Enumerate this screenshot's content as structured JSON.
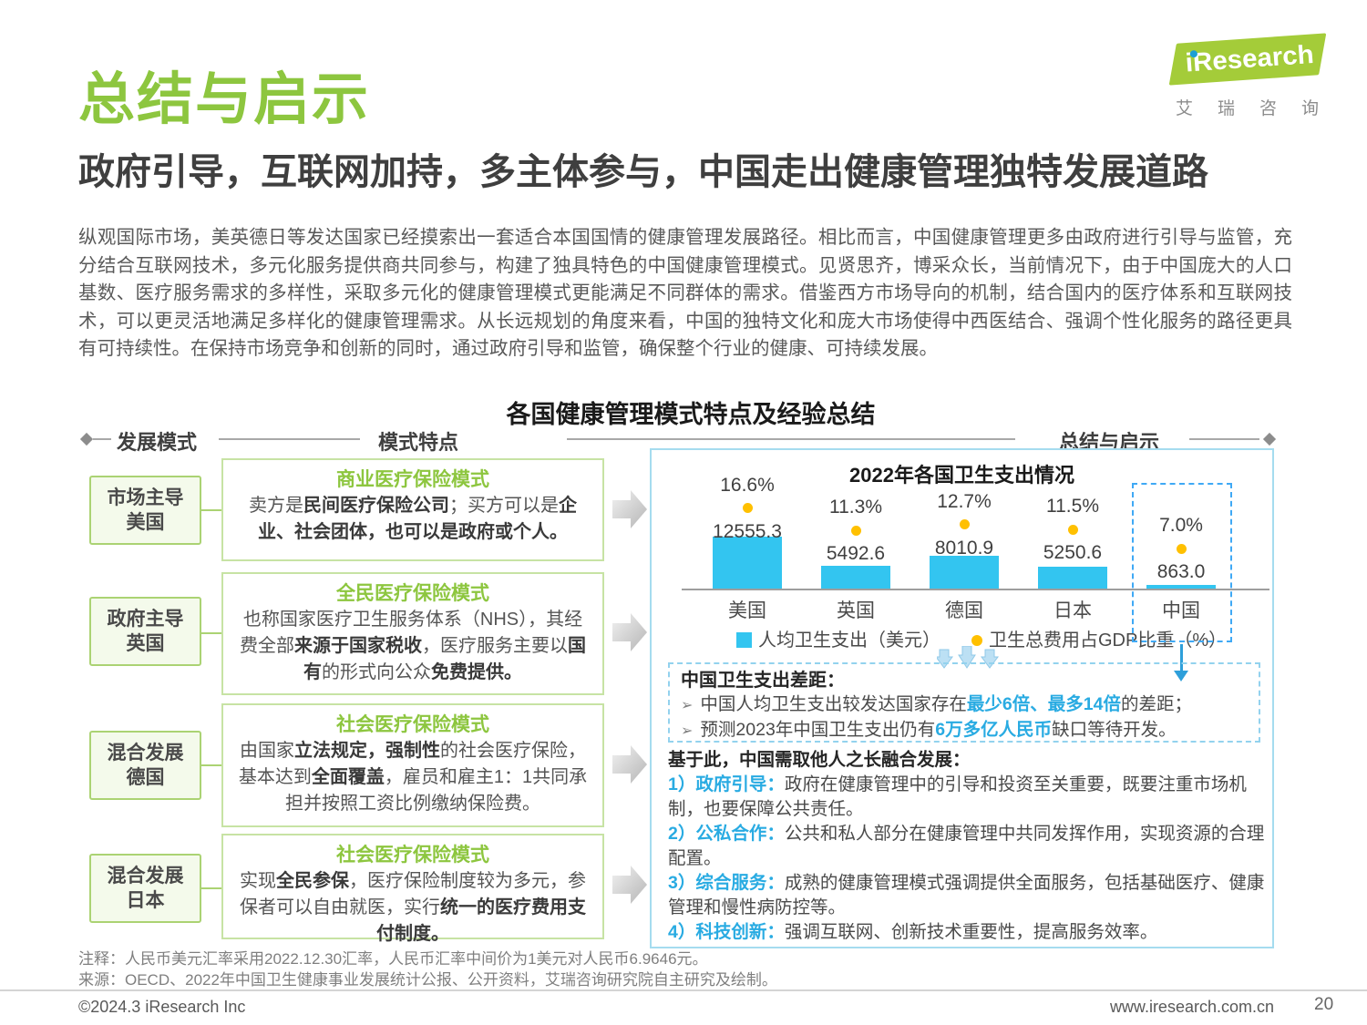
{
  "page": {
    "title": "总结与启示",
    "subtitle": "政府引导，互联网加持，多主体参与，中国走出健康管理独特发展道路",
    "paragraph": "纵观国际市场，美英德日等发达国家已经摸索出一套适合本国国情的健康管理发展路径。相比而言，中国健康管理更多由政府进行引导与监管，充分结合互联网技术，多元化服务提供商共同参与，构建了独具特色的中国健康管理模式。见贤思齐，博采众长，当前情况下，由于中国庞大的人口基数、医疗服务需求的多样性，采取多元化的健康管理模式更能满足不同群体的需求。借鉴西方市场导向的机制，结合国内的医疗体系和互联网技术，可以更灵活地满足多样化的健康管理需求。从长远规划的角度来看，中国的独特文化和庞大市场使得中西医结合、强调个性化服务的路径更具有可持续性。在保持市场竞争和创新的同时，通过政府引导和监管，确保整个行业的健康、可持续发展。",
    "notes": [
      "注释：人民币美元汇率采用2022.12.30汇率，人民币汇率中间价为1美元对人民币6.9646元。",
      "来源：OECD、2022年中国卫生健康事业发展统计公报、公开资料，艾瑞咨询研究院自主研究及绘制。"
    ],
    "footer": {
      "copyright": "©2024.3 iResearch Inc",
      "website": "www.iresearch.com.cn",
      "page_number": "20"
    }
  },
  "logo": {
    "brand": "iResearch",
    "caption": "艾瑞咨询"
  },
  "diagram": {
    "title": "各国健康管理模式特点及经验总结",
    "headers": [
      "发展模式",
      "模式特点",
      "总结与启示"
    ],
    "rows": [
      {
        "mode": "市场主导",
        "country": "美国",
        "model": "商业医疗保险模式",
        "desc": [
          {
            "t": "卖方是"
          },
          {
            "t": "民间医疗保险公司",
            "cls": "b"
          },
          {
            "t": "；买方可以是"
          },
          {
            "t": "企业、社会团体，也可以是政府或个人。",
            "cls": "b"
          }
        ]
      },
      {
        "mode": "政府主导",
        "country": "英国",
        "model": "全民医疗保险模式",
        "desc": [
          {
            "t": "也称国家医疗卫生服务体系（NHS），其经费全部"
          },
          {
            "t": "来源于国家税收",
            "cls": "b"
          },
          {
            "t": "，医疗服务主要以"
          },
          {
            "t": "国有",
            "cls": "b"
          },
          {
            "t": "的形式向公众"
          },
          {
            "t": "免费提供。",
            "cls": "b"
          }
        ]
      },
      {
        "mode": "混合发展",
        "country": "德国",
        "model": "社会医疗保险模式",
        "desc": [
          {
            "t": "由国家"
          },
          {
            "t": "立法规定，强制性",
            "cls": "b"
          },
          {
            "t": "的社会医疗保险，基本达到"
          },
          {
            "t": "全面覆盖",
            "cls": "b"
          },
          {
            "t": "，雇员和雇主1：1共同承担并按照工资比例缴纳保险费。"
          }
        ]
      },
      {
        "mode": "混合发展",
        "country": "日本",
        "model": "社会医疗保险模式",
        "desc": [
          {
            "t": "实现"
          },
          {
            "t": "全民参保",
            "cls": "b"
          },
          {
            "t": "，医疗保险制度较为多元，参保者可以自由就医，实行"
          },
          {
            "t": "统一的医疗费用支付制度。",
            "cls": "b"
          }
        ]
      }
    ]
  },
  "chart_data": {
    "type": "bar",
    "title": "2022年各国卫生支出情况",
    "categories": [
      "美国",
      "英国",
      "德国",
      "日本",
      "中国"
    ],
    "series": [
      {
        "name": "人均卫生支出（美元）",
        "type": "bar",
        "color": "#33C5F0",
        "values": [
          12555.3,
          5492.6,
          8010.9,
          5250.6,
          863.0
        ]
      },
      {
        "name": "卫生总费用占GDP比重（%）",
        "type": "point",
        "color": "#FFC000",
        "values": [
          16.6,
          11.3,
          12.7,
          11.5,
          7.0
        ]
      }
    ],
    "value_labels": [
      "12555.3",
      "5492.6",
      "8010.9",
      "5250.6",
      "863.0"
    ],
    "percent_labels": [
      "16.6%",
      "11.3%",
      "12.7%",
      "11.5%",
      "7.0%"
    ],
    "highlight_category": "中国",
    "legend_position": "bottom",
    "ylim": [
      0,
      13000
    ]
  },
  "gap_box": {
    "marker": "➢",
    "title": "中国卫生支出差距：",
    "bullets": [
      [
        {
          "t": "中国人均卫生支出较发达国家存在"
        },
        {
          "t": "最少6倍、最多14倍",
          "cls": "hl"
        },
        {
          "t": "的差距；"
        }
      ],
      [
        {
          "t": "预测2023年中国卫生支出仍有"
        },
        {
          "t": "6万多亿人民币",
          "cls": "hl"
        },
        {
          "t": "缺口等待开发。"
        }
      ]
    ]
  },
  "insight": {
    "heading": "基于此，中国需取他人之长融合发展：",
    "items": [
      {
        "label": "1）政府引导：",
        "text": "政府在健康管理中的引导和投资至关重要，既要注重市场机制，也要保障公共责任。"
      },
      {
        "label": "2）公私合作：",
        "text": "公共和私人部分在健康管理中共同发挥作用，实现资源的合理配置。"
      },
      {
        "label": "3）综合服务：",
        "text": "成熟的健康管理模式强调提供全面服务，包括基础医疗、健康管理和慢性病防控等。"
      },
      {
        "label": "4）科技创新：",
        "text": "强调互联网、创新技术重要性，提高服务效率。"
      }
    ]
  },
  "colors": {
    "accent_green": "#8DC63F",
    "accent_blue": "#29ABE2",
    "bar_cyan": "#33C5F0",
    "dot_yellow": "#FFC000",
    "panel_border": "#A5DCEF"
  }
}
